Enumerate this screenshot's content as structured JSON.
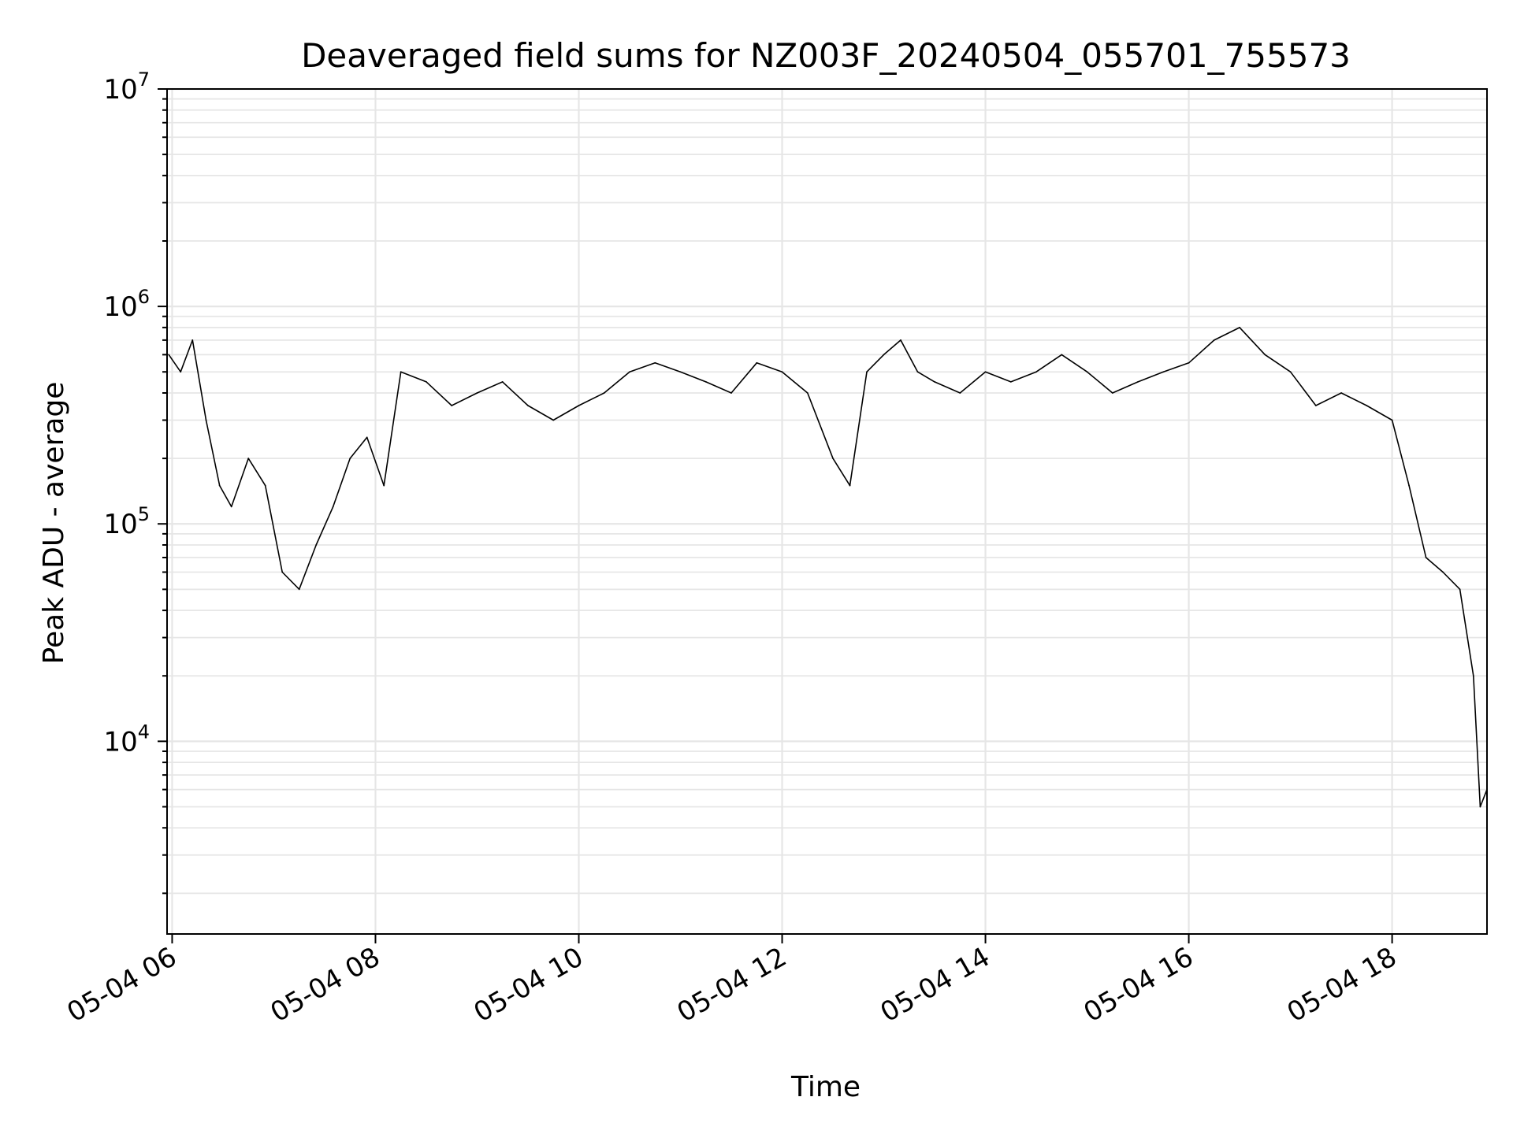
{
  "chart_data": {
    "type": "line",
    "title": "Deaveraged field sums for NZ003F_20240504_055701_755573",
    "xlabel": "Time",
    "ylabel": "Peak ADU - average",
    "y_scale": "log",
    "ylim": [
      1300,
      10000000
    ],
    "xlim": [
      "2024-05-04 05:57",
      "2024-05-04 18:56"
    ],
    "grid": true,
    "line_color": "#000000",
    "x_ticks": [
      "05-04 06",
      "05-04 08",
      "05-04 10",
      "05-04 12",
      "05-04 14",
      "05-04 16",
      "05-04 18"
    ],
    "y_ticks": [
      {
        "mantissa": "10",
        "exp": "4",
        "value": 10000
      },
      {
        "mantissa": "10",
        "exp": "5",
        "value": 100000
      },
      {
        "mantissa": "10",
        "exp": "6",
        "value": 1000000
      },
      {
        "mantissa": "10",
        "exp": "7",
        "value": 10000000
      }
    ],
    "series": [
      {
        "x": [
          "05:58",
          "06:05",
          "06:12",
          "06:20",
          "06:28",
          "06:35",
          "06:45",
          "06:55",
          "07:05",
          "07:15",
          "07:25",
          "07:35",
          "07:45",
          "07:55",
          "08:05",
          "08:15",
          "08:30",
          "08:45",
          "09:00",
          "09:15",
          "09:30",
          "09:45",
          "10:00",
          "10:15",
          "10:30",
          "10:45",
          "11:00",
          "11:15",
          "11:30",
          "11:45",
          "12:00",
          "12:15",
          "12:30",
          "12:40",
          "12:50",
          "13:00",
          "13:10",
          "13:20",
          "13:30",
          "13:45",
          "14:00",
          "14:15",
          "14:30",
          "14:45",
          "15:00",
          "15:15",
          "15:30",
          "15:45",
          "16:00",
          "16:15",
          "16:30",
          "16:45",
          "17:00",
          "17:15",
          "17:30",
          "17:45",
          "18:00",
          "18:10",
          "18:20",
          "18:30",
          "18:40",
          "18:48",
          "18:52",
          "18:56"
        ],
        "y": [
          600000,
          500000,
          700000,
          300000,
          150000,
          120000,
          200000,
          150000,
          60000,
          50000,
          80000,
          120000,
          200000,
          250000,
          150000,
          500000,
          450000,
          350000,
          400000,
          450000,
          350000,
          300000,
          350000,
          400000,
          500000,
          550000,
          500000,
          450000,
          400000,
          550000,
          500000,
          400000,
          200000,
          150000,
          500000,
          600000,
          700000,
          500000,
          450000,
          400000,
          500000,
          450000,
          500000,
          600000,
          500000,
          400000,
          450000,
          500000,
          550000,
          700000,
          800000,
          600000,
          500000,
          350000,
          400000,
          350000,
          300000,
          150000,
          70000,
          60000,
          50000,
          20000,
          5000,
          6000
        ]
      }
    ]
  }
}
